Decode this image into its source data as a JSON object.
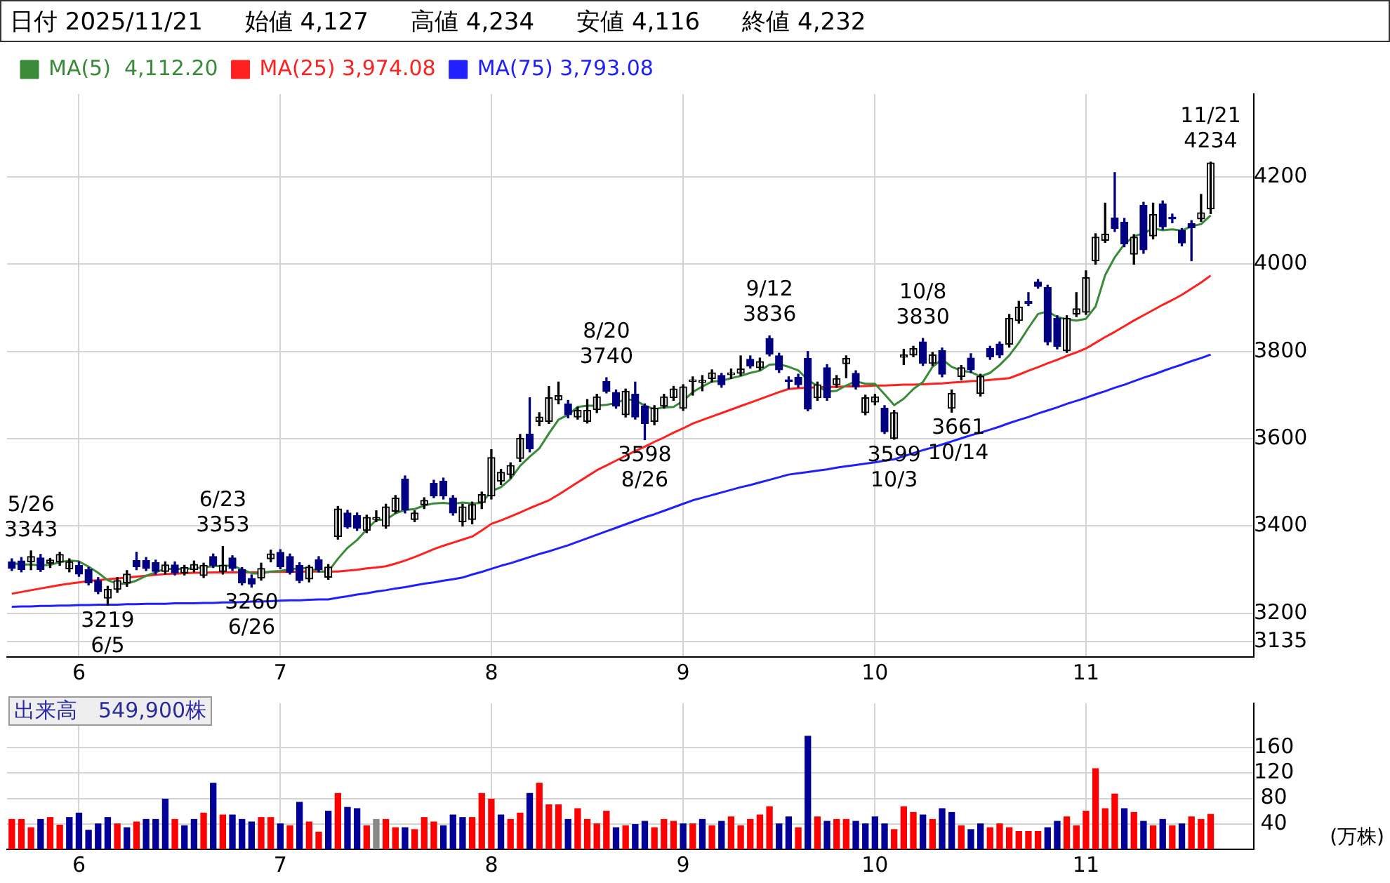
{
  "chart_data": [
    {
      "type": "candlestick",
      "title": "日付 2025/11/21",
      "annotations": [
        "始値 4,127",
        "高値 4,234",
        "安値 4,116",
        "終値 4,232",
        {
          "text": "5/26\n3343",
          "y": 3343
        },
        {
          "text": "3219\n6/5",
          "y": 3219
        },
        {
          "text": "6/23\n3353",
          "y": 3353
        },
        {
          "text": "3260\n6/26",
          "y": 3260
        },
        {
          "text": "8/20\n3740",
          "y": 3740
        },
        {
          "text": "3598\n8/26",
          "y": 3598
        },
        {
          "text": "9/12\n3836",
          "y": 3836
        },
        {
          "text": "3599\n10/3",
          "y": 3599
        },
        {
          "text": "10/8\n3830",
          "y": 3830
        },
        {
          "text": "3661\n10/14",
          "y": 3661
        },
        {
          "text": "11/21\n4234",
          "y": 4234
        }
      ],
      "categories": [
        null,
        null,
        null,
        null,
        null,
        null,
        null,
        "6",
        null,
        null,
        null,
        null,
        null,
        null,
        null,
        null,
        null,
        null,
        null,
        null,
        null,
        null,
        null,
        null,
        null,
        null,
        null,
        null,
        "7",
        null,
        null,
        null,
        null,
        null,
        null,
        null,
        null,
        null,
        null,
        null,
        null,
        null,
        null,
        null,
        null,
        null,
        null,
        null,
        null,
        null,
        "8",
        null,
        null,
        null,
        null,
        null,
        null,
        null,
        null,
        null,
        null,
        null,
        null,
        null,
        null,
        null,
        null,
        null,
        null,
        null,
        "9",
        null,
        null,
        null,
        null,
        null,
        null,
        null,
        null,
        null,
        null,
        null,
        null,
        null,
        null,
        null,
        null,
        null,
        null,
        null,
        "10",
        null,
        null,
        null,
        null,
        null,
        null,
        null,
        null,
        null,
        null,
        null,
        null,
        null,
        null,
        null,
        null,
        null,
        null,
        null,
        null,
        null,
        "11",
        null,
        null,
        null,
        null,
        null,
        null,
        null,
        null,
        null,
        null,
        null,
        null,
        null
      ],
      "ohlc": [
        [
          3318,
          3325,
          3298,
          3303
        ],
        [
          3320,
          3328,
          3295,
          3300
        ],
        [
          3318,
          3343,
          3300,
          3330
        ],
        [
          3327,
          3335,
          3296,
          3300
        ],
        [
          3315,
          3326,
          3305,
          3322
        ],
        [
          3318,
          3340,
          3310,
          3335
        ],
        [
          3302,
          3325,
          3295,
          3318
        ],
        [
          3310,
          3318,
          3285,
          3290
        ],
        [
          3300,
          3305,
          3265,
          3270
        ],
        [
          3275,
          3282,
          3245,
          3250
        ],
        [
          3235,
          3262,
          3219,
          3255
        ],
        [
          3255,
          3282,
          3248,
          3275
        ],
        [
          3270,
          3298,
          3262,
          3290
        ],
        [
          3321,
          3340,
          3300,
          3307
        ],
        [
          3321,
          3328,
          3298,
          3303
        ],
        [
          3316,
          3322,
          3290,
          3296
        ],
        [
          3296,
          3318,
          3290,
          3311
        ],
        [
          3311,
          3318,
          3288,
          3293
        ],
        [
          3293,
          3310,
          3288,
          3305
        ],
        [
          3300,
          3320,
          3295,
          3312
        ],
        [
          3287,
          3315,
          3282,
          3310
        ],
        [
          3330,
          3336,
          3305,
          3310
        ],
        [
          3296,
          3353,
          3290,
          3310
        ],
        [
          3327,
          3332,
          3298,
          3303
        ],
        [
          3300,
          3305,
          3265,
          3270
        ],
        [
          3280,
          3288,
          3260,
          3267
        ],
        [
          3281,
          3315,
          3276,
          3303
        ],
        [
          3325,
          3345,
          3318,
          3336
        ],
        [
          3340,
          3346,
          3302,
          3307
        ],
        [
          3330,
          3336,
          3290,
          3294
        ],
        [
          3310,
          3316,
          3270,
          3275
        ],
        [
          3279,
          3310,
          3272,
          3306
        ],
        [
          3323,
          3330,
          3295,
          3300
        ],
        [
          3283,
          3312,
          3278,
          3306
        ],
        [
          3376,
          3445,
          3370,
          3439
        ],
        [
          3430,
          3436,
          3395,
          3398
        ],
        [
          3424,
          3430,
          3390,
          3395
        ],
        [
          3390,
          3425,
          3385,
          3420
        ],
        [
          3415,
          3435,
          3410,
          3420
        ],
        [
          3400,
          3450,
          3395,
          3444
        ],
        [
          3434,
          3470,
          3430,
          3464
        ],
        [
          3508,
          3515,
          3430,
          3437
        ],
        [
          3415,
          3435,
          3410,
          3430
        ],
        [
          3449,
          3465,
          3440,
          3459
        ],
        [
          3498,
          3505,
          3465,
          3469
        ],
        [
          3503,
          3510,
          3462,
          3469
        ],
        [
          3464,
          3470,
          3425,
          3430
        ],
        [
          3410,
          3450,
          3400,
          3444
        ],
        [
          3415,
          3455,
          3405,
          3449
        ],
        [
          3454,
          3478,
          3440,
          3472
        ],
        [
          3469,
          3575,
          3462,
          3557
        ],
        [
          3503,
          3530,
          3495,
          3523
        ],
        [
          3518,
          3545,
          3510,
          3539
        ],
        [
          3555,
          3610,
          3548,
          3601
        ],
        [
          3611,
          3694,
          3570,
          3577
        ],
        [
          3640,
          3660,
          3630,
          3650
        ],
        [
          3640,
          3720,
          3635,
          3694
        ],
        [
          3689,
          3730,
          3680,
          3699
        ],
        [
          3680,
          3688,
          3648,
          3655
        ],
        [
          3650,
          3672,
          3645,
          3665
        ],
        [
          3640,
          3690,
          3636,
          3665
        ],
        [
          3667,
          3702,
          3660,
          3696
        ],
        [
          3731,
          3740,
          3705,
          3709
        ],
        [
          3706,
          3712,
          3670,
          3675
        ],
        [
          3655,
          3714,
          3650,
          3709
        ],
        [
          3702,
          3730,
          3645,
          3650
        ],
        [
          3675,
          3680,
          3598,
          3635
        ],
        [
          3640,
          3676,
          3632,
          3670
        ],
        [
          3675,
          3702,
          3670,
          3696
        ],
        [
          3694,
          3720,
          3688,
          3714
        ],
        [
          3670,
          3724,
          3665,
          3719
        ],
        [
          3731,
          3742,
          3700,
          3735
        ],
        [
          3729,
          3745,
          3710,
          3734
        ],
        [
          3738,
          3758,
          3730,
          3751
        ],
        [
          3745,
          3750,
          3718,
          3724
        ],
        [
          3747,
          3760,
          3738,
          3751
        ],
        [
          3750,
          3790,
          3745,
          3760
        ],
        [
          3782,
          3790,
          3762,
          3767
        ],
        [
          3763,
          3785,
          3758,
          3777
        ],
        [
          3830,
          3836,
          3790,
          3794
        ],
        [
          3790,
          3796,
          3752,
          3758
        ],
        [
          3735,
          3742,
          3715,
          3731
        ],
        [
          3741,
          3748,
          3718,
          3724
        ],
        [
          3784,
          3800,
          3664,
          3668
        ],
        [
          3694,
          3730,
          3688,
          3724
        ],
        [
          3763,
          3770,
          3688,
          3694
        ],
        [
          3724,
          3745,
          3718,
          3738
        ],
        [
          3772,
          3790,
          3740,
          3784
        ],
        [
          3750,
          3756,
          3714,
          3719
        ],
        [
          3660,
          3700,
          3655,
          3694
        ],
        [
          3684,
          3702,
          3678,
          3696
        ],
        [
          3670,
          3676,
          3612,
          3616
        ],
        [
          3601,
          3665,
          3599,
          3660
        ],
        [
          3787,
          3805,
          3770,
          3792
        ],
        [
          3792,
          3812,
          3788,
          3807
        ],
        [
          3822,
          3830,
          3768,
          3773
        ],
        [
          3773,
          3798,
          3768,
          3792
        ],
        [
          3802,
          3808,
          3742,
          3748
        ],
        [
          3670,
          3712,
          3661,
          3704
        ],
        [
          3743,
          3768,
          3735,
          3763
        ],
        [
          3785,
          3795,
          3752,
          3758
        ],
        [
          3704,
          3748,
          3698,
          3743
        ],
        [
          3807,
          3812,
          3782,
          3788
        ],
        [
          3817,
          3822,
          3786,
          3792
        ],
        [
          3817,
          3885,
          3810,
          3876
        ],
        [
          3871,
          3915,
          3865,
          3902
        ],
        [
          3915,
          3935,
          3905,
          3910
        ],
        [
          3959,
          3965,
          3945,
          3949
        ],
        [
          3947,
          3952,
          3815,
          3822
        ],
        [
          3876,
          3882,
          3806,
          3812
        ],
        [
          3802,
          3882,
          3798,
          3876
        ],
        [
          3886,
          3935,
          3880,
          3898
        ],
        [
          3890,
          3985,
          3885,
          3969
        ],
        [
          4008,
          4070,
          4000,
          4062
        ],
        [
          4055,
          4140,
          4050,
          4069
        ],
        [
          4106,
          4210,
          4075,
          4082
        ],
        [
          4096,
          4105,
          4040,
          4047
        ],
        [
          4023,
          4068,
          4000,
          4062
        ],
        [
          4135,
          4142,
          4025,
          4033
        ],
        [
          4065,
          4140,
          4058,
          4114
        ],
        [
          4138,
          4145,
          4080,
          4086
        ],
        [
          4108,
          4115,
          4095,
          4104
        ],
        [
          4077,
          4082,
          4042,
          4049
        ],
        [
          4093,
          4100,
          4008,
          4084
        ],
        [
          4104,
          4160,
          4098,
          4118
        ],
        [
          4127,
          4234,
          4116,
          4232
        ]
      ],
      "colors": [
        "#000080",
        "#000080",
        "#000000",
        "#000080",
        "#000000",
        "#000000",
        "#000000",
        "#000080",
        "#000080",
        "#000080",
        "#000000",
        "#000000",
        "#000000",
        "#000080",
        "#000080",
        "#000080",
        "#000000",
        "#000080",
        "#000000",
        "#000000",
        "#000000",
        "#000080",
        "#000000",
        "#000080",
        "#000080",
        "#000080",
        "#000000",
        "#000000",
        "#000080",
        "#000080",
        "#000080",
        "#000000",
        "#000080",
        "#000000",
        "#000000",
        "#000080",
        "#000080",
        "#000000",
        "#000000",
        "#000000",
        "#000000",
        "#000080",
        "#000000",
        "#000000",
        "#000080",
        "#000080",
        "#000080",
        "#000000",
        "#000000",
        "#000000",
        "#000000",
        "#000000",
        "#000000",
        "#000000",
        "#000080",
        "#000000",
        "#000000",
        "#000000",
        "#000080",
        "#000000",
        "#000000",
        "#000000",
        "#000080",
        "#000080",
        "#000000",
        "#000080",
        "#000080",
        "#000000",
        "#000000",
        "#000000",
        "#000000",
        "#000000",
        "#000000",
        "#000000",
        "#000080",
        "#000000",
        "#000000",
        "#000080",
        "#000000",
        "#000080",
        "#000080",
        "#000080",
        "#000080",
        "#000080",
        "#000000",
        "#000080",
        "#000000",
        "#000000",
        "#000080",
        "#000000",
        "#000000",
        "#000080",
        "#000000",
        "#000000",
        "#000000",
        "#000080",
        "#000000",
        "#000080",
        "#000000",
        "#000000",
        "#000080",
        "#000000",
        "#000080",
        "#000080",
        "#000000",
        "#000000",
        "#000080",
        "#000080",
        "#000080",
        "#000080",
        "#000000",
        "#000000",
        "#000000",
        "#000000",
        "#000000",
        "#000080",
        "#000080",
        "#000000",
        "#000080",
        "#000000",
        "#000080",
        "#000080",
        "#000080",
        "#000080",
        "#000000",
        "#000000"
      ],
      "series": [
        {
          "type": "line",
          "name": "MA(5)  4,112.20",
          "color": "#3a8a3a",
          "values": [
            3315,
            3312,
            3312,
            3310,
            3311,
            3317,
            3321,
            3319,
            3307,
            3293,
            3276,
            3268,
            3268,
            3275,
            3286,
            3294,
            3302,
            3302,
            3302,
            3303,
            3306,
            3308,
            3309,
            3309,
            3301,
            3292,
            3291,
            3296,
            3297,
            3301,
            3303,
            3304,
            3296,
            3296,
            3325,
            3350,
            3368,
            3392,
            3414,
            3415,
            3429,
            3437,
            3439,
            3447,
            3452,
            3453,
            3451,
            3454,
            3452,
            3453,
            3480,
            3489,
            3508,
            3538,
            3559,
            3578,
            3612,
            3644,
            3655,
            3673,
            3676,
            3676,
            3678,
            3682,
            3691,
            3688,
            3676,
            3668,
            3672,
            3673,
            3687,
            3707,
            3720,
            3731,
            3733,
            3739,
            3744,
            3751,
            3756,
            3770,
            3771,
            3765,
            3757,
            3735,
            3721,
            3708,
            3710,
            3722,
            3732,
            3726,
            3726,
            3702,
            3677,
            3692,
            3714,
            3730,
            3765,
            3782,
            3765,
            3756,
            3753,
            3743,
            3751,
            3769,
            3791,
            3820,
            3854,
            3886,
            3892,
            3879,
            3874,
            3871,
            3875,
            3903,
            3975,
            4016,
            4046,
            4064,
            4071,
            4082,
            4078,
            4080,
            4077,
            4087,
            4092,
            4112
          ]
        },
        {
          "type": "line",
          "name": "MA(25) 3,974.08",
          "color": "#ff2020",
          "values": [
            3245,
            3249,
            3253,
            3257,
            3261,
            3265,
            3268,
            3271,
            3274,
            3276,
            3278,
            3280,
            3282,
            3284,
            3286,
            3288,
            3290,
            3291,
            3292,
            3293,
            3293,
            3294,
            3294,
            3294,
            3294,
            3294,
            3294,
            3295,
            3295,
            3295,
            3296,
            3296,
            3296,
            3296,
            3296,
            3298,
            3300,
            3303,
            3305,
            3308,
            3314,
            3321,
            3329,
            3338,
            3347,
            3355,
            3362,
            3369,
            3376,
            3390,
            3405,
            3413,
            3422,
            3431,
            3441,
            3450,
            3459,
            3472,
            3486,
            3500,
            3514,
            3528,
            3539,
            3550,
            3561,
            3572,
            3582,
            3593,
            3603,
            3614,
            3624,
            3635,
            3643,
            3651,
            3659,
            3667,
            3675,
            3683,
            3691,
            3699,
            3707,
            3714,
            3716,
            3717,
            3718,
            3719,
            3719,
            3720,
            3720,
            3721,
            3722,
            3722,
            3723,
            3724,
            3724,
            3725,
            3726,
            3727,
            3729,
            3730,
            3732,
            3733,
            3735,
            3737,
            3739,
            3747,
            3756,
            3764,
            3773,
            3781,
            3790,
            3798,
            3807,
            3820,
            3833,
            3845,
            3858,
            3871,
            3883,
            3895,
            3907,
            3918,
            3930,
            3944,
            3958,
            3974
          ]
        },
        {
          "type": "line",
          "name": "MA(75) 3,793.08",
          "color": "#2020ff",
          "values": [
            3215,
            3216,
            3216,
            3217,
            3217,
            3218,
            3218,
            3219,
            3219,
            3220,
            3220,
            3220,
            3221,
            3221,
            3222,
            3222,
            3222,
            3223,
            3223,
            3223,
            3224,
            3224,
            3225,
            3225,
            3226,
            3227,
            3227,
            3228,
            3229,
            3230,
            3230,
            3231,
            3232,
            3232,
            3236,
            3239,
            3243,
            3246,
            3250,
            3253,
            3257,
            3260,
            3264,
            3268,
            3271,
            3275,
            3278,
            3282,
            3289,
            3295,
            3302,
            3309,
            3315,
            3322,
            3329,
            3336,
            3342,
            3349,
            3356,
            3364,
            3372,
            3380,
            3388,
            3396,
            3404,
            3412,
            3420,
            3427,
            3435,
            3443,
            3451,
            3459,
            3465,
            3471,
            3477,
            3483,
            3489,
            3494,
            3500,
            3506,
            3512,
            3518,
            3521,
            3524,
            3527,
            3530,
            3534,
            3537,
            3540,
            3543,
            3546,
            3550,
            3553,
            3560,
            3567,
            3574,
            3580,
            3587,
            3594,
            3601,
            3608,
            3614,
            3621,
            3628,
            3636,
            3643,
            3650,
            3658,
            3665,
            3672,
            3680,
            3687,
            3694,
            3702,
            3709,
            3717,
            3724,
            3732,
            3740,
            3747,
            3755,
            3763,
            3770,
            3778,
            3785,
            3793
          ]
        }
      ],
      "ylim": [
        3100,
        4390
      ],
      "yticks": [
        3135,
        3200,
        3400,
        3600,
        3800,
        4000,
        4200
      ],
      "grid": true,
      "legend": "top left"
    },
    {
      "type": "bar",
      "title": "出来高　549,900株",
      "ylabel": "(万株)",
      "categories": [
        null,
        null,
        null,
        null,
        null,
        null,
        null,
        "6",
        null,
        null,
        null,
        null,
        null,
        null,
        null,
        null,
        null,
        null,
        null,
        null,
        null,
        null,
        null,
        null,
        null,
        null,
        null,
        null,
        "7",
        null,
        null,
        null,
        null,
        null,
        null,
        null,
        null,
        null,
        null,
        null,
        null,
        null,
        null,
        null,
        null,
        null,
        null,
        null,
        null,
        null,
        "8",
        null,
        null,
        null,
        null,
        null,
        null,
        null,
        null,
        null,
        null,
        null,
        null,
        null,
        null,
        null,
        null,
        null,
        null,
        null,
        "9",
        null,
        null,
        null,
        null,
        null,
        null,
        null,
        null,
        null,
        null,
        null,
        null,
        null,
        null,
        null,
        null,
        null,
        null,
        null,
        "10",
        null,
        null,
        null,
        null,
        null,
        null,
        null,
        null,
        null,
        null,
        null,
        null,
        null,
        null,
        null,
        null,
        null,
        null,
        null,
        null,
        null,
        "11",
        null,
        null,
        null,
        null,
        null,
        null,
        null,
        null,
        null,
        null,
        null,
        null,
        null
      ],
      "values": [
        47,
        47,
        34,
        47,
        50,
        38,
        50,
        57,
        30,
        40,
        50,
        40,
        34,
        43,
        47,
        47,
        79,
        47,
        37,
        47,
        57,
        104,
        54,
        54,
        47,
        43,
        50,
        50,
        40,
        37,
        74,
        43,
        27,
        60,
        88,
        66,
        64,
        37,
        47,
        47,
        34,
        34,
        31,
        50,
        43,
        37,
        54,
        50,
        50,
        88,
        79,
        54,
        47,
        57,
        88,
        104,
        70,
        70,
        47,
        64,
        47,
        40,
        60,
        34,
        37,
        39,
        44,
        34,
        47,
        44,
        40,
        40,
        47,
        37,
        44,
        51,
        37,
        47,
        54,
        67,
        40,
        51,
        34,
        178,
        51,
        44,
        47,
        47,
        44,
        40,
        51,
        40,
        31,
        67,
        58,
        54,
        47,
        64,
        58,
        37,
        31,
        40,
        34,
        40,
        34,
        28,
        28,
        28,
        34,
        44,
        51,
        37,
        60,
        127,
        64,
        87,
        64,
        58,
        44,
        37,
        47,
        37,
        40,
        51,
        47,
        55
      ],
      "colors": [
        "#ff0000",
        "#ff0000",
        "#ff0000",
        "#000099",
        "#ff0000",
        "#ff0000",
        "#000099",
        "#000099",
        "#000099",
        "#000099",
        "#000099",
        "#ff0000",
        "#000099",
        "#ff0000",
        "#000099",
        "#000099",
        "#000099",
        "#ff0000",
        "#000099",
        "#000099",
        "#ff0000",
        "#000099",
        "#ff0000",
        "#000099",
        "#000099",
        "#000099",
        "#ff0000",
        "#ff0000",
        "#000099",
        "#ff0000",
        "#000099",
        "#ff0000",
        "#ff0000",
        "#000099",
        "#ff0000",
        "#000099",
        "#000099",
        "#ff0000",
        "#888888",
        "#ff0000",
        "#ff0000",
        "#000099",
        "#ff0000",
        "#ff0000",
        "#ff0000",
        "#000099",
        "#000099",
        "#000099",
        "#ff0000",
        "#ff0000",
        "#ff0000",
        "#000099",
        "#ff0000",
        "#ff0000",
        "#000099",
        "#ff0000",
        "#ff0000",
        "#ff0000",
        "#000099",
        "#ff0000",
        "#ff0000",
        "#ff0000",
        "#ff0000",
        "#000099",
        "#ff0000",
        "#000099",
        "#000099",
        "#ff0000",
        "#ff0000",
        "#ff0000",
        "#000099",
        "#ff0000",
        "#000099",
        "#ff0000",
        "#000099",
        "#ff0000",
        "#ff0000",
        "#ff0000",
        "#ff0000",
        "#ff0000",
        "#000099",
        "#000099",
        "#ff0000",
        "#000099",
        "#ff0000",
        "#000099",
        "#ff0000",
        "#ff0000",
        "#000099",
        "#000099",
        "#000099",
        "#000099",
        "#ff0000",
        "#ff0000",
        "#ff0000",
        "#000099",
        "#ff0000",
        "#000099",
        "#000099",
        "#ff0000",
        "#000099",
        "#000099",
        "#ff0000",
        "#ff0000",
        "#ff0000",
        "#ff0000",
        "#ff0000",
        "#ff0000",
        "#000099",
        "#000099",
        "#ff0000",
        "#ff0000",
        "#ff0000",
        "#ff0000",
        "#ff0000",
        "#ff0000",
        "#000099",
        "#ff0000",
        "#000099",
        "#ff0000",
        "#000099",
        "#ff0000",
        "#000099",
        "#ff0000",
        "#ff0000",
        "#ff0000"
      ],
      "ylim": [
        0,
        230
      ],
      "yticks": [
        40,
        80,
        120,
        160
      ],
      "grid": true
    }
  ]
}
